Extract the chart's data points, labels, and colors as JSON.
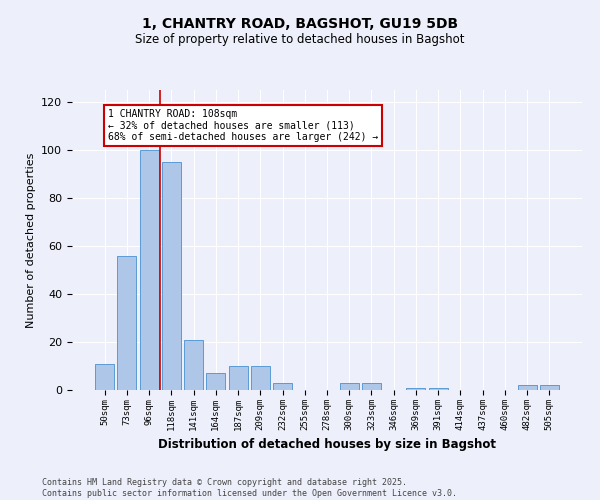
{
  "title": "1, CHANTRY ROAD, BAGSHOT, GU19 5DB",
  "subtitle": "Size of property relative to detached houses in Bagshot",
  "xlabel": "Distribution of detached houses by size in Bagshot",
  "ylabel": "Number of detached properties",
  "categories": [
    "50sqm",
    "73sqm",
    "96sqm",
    "118sqm",
    "141sqm",
    "164sqm",
    "187sqm",
    "209sqm",
    "232sqm",
    "255sqm",
    "278sqm",
    "300sqm",
    "323sqm",
    "346sqm",
    "369sqm",
    "391sqm",
    "414sqm",
    "437sqm",
    "460sqm",
    "482sqm",
    "505sqm"
  ],
  "values": [
    11,
    56,
    100,
    95,
    21,
    7,
    10,
    10,
    3,
    0,
    0,
    3,
    3,
    0,
    1,
    1,
    0,
    0,
    0,
    2,
    2
  ],
  "bar_color": "#aec6e8",
  "bar_edge_color": "#5b9bd5",
  "vline_x_index": 2.5,
  "vline_color": "#cc0000",
  "annotation_text": "1 CHANTRY ROAD: 108sqm\n← 32% of detached houses are smaller (113)\n68% of semi-detached houses are larger (242) →",
  "annotation_box_color": "#ffffff",
  "annotation_box_edge": "#cc0000",
  "ylim": [
    0,
    125
  ],
  "yticks": [
    0,
    20,
    40,
    60,
    80,
    100,
    120
  ],
  "footer": "Contains HM Land Registry data © Crown copyright and database right 2025.\nContains public sector information licensed under the Open Government Licence v3.0.",
  "bg_color": "#edf0fb",
  "plot_bg_color": "#edf0fb",
  "title_fontsize": 10,
  "subtitle_fontsize": 8.5,
  "ylabel_fontsize": 8,
  "xlabel_fontsize": 8.5,
  "ytick_fontsize": 8,
  "xtick_fontsize": 6.5,
  "footer_fontsize": 6,
  "annot_fontsize": 7
}
